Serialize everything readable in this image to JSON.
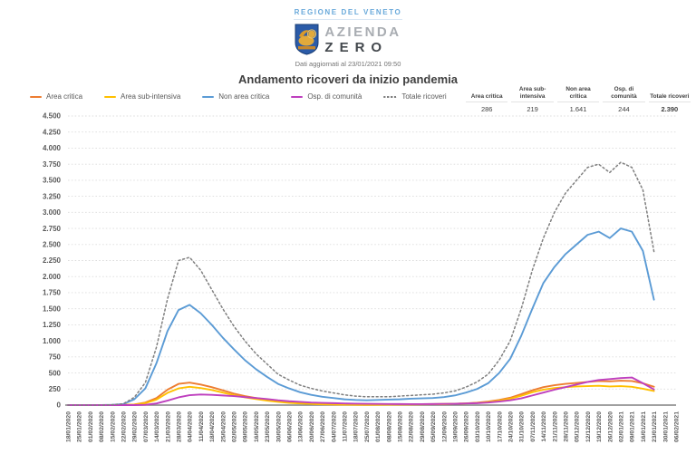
{
  "header": {
    "region_label": "REGIONE DEL VENETO",
    "logo_line1": "AZIENDA",
    "logo_line2": "ZERO",
    "updated_text": "Dati aggiornati al 23/01/2021 09:50",
    "title": "Andamento ricoveri da inizio pandemia"
  },
  "summary_table": {
    "columns": [
      {
        "header": "Area critica",
        "value": "286",
        "emphasis": false
      },
      {
        "header": "Area sub-intensiva",
        "value": "219",
        "emphasis": false
      },
      {
        "header": "Non area critica",
        "value": "1.641",
        "emphasis": false
      },
      {
        "header": "Osp. di comunità",
        "value": "244",
        "emphasis": false
      },
      {
        "header": "Totale ricoveri",
        "value": "2.390",
        "emphasis": true
      }
    ]
  },
  "chart_data": {
    "type": "line",
    "title": "Andamento ricoveri da inizio pandemia",
    "xlabel": "",
    "ylabel": "",
    "ylim": [
      0,
      4500
    ],
    "y_tick_step": 250,
    "grid": true,
    "legend_position": "top-left",
    "x_labels": [
      "18/01/2020",
      "25/01/2020",
      "01/02/2020",
      "08/02/2020",
      "15/02/2020",
      "22/02/2020",
      "29/02/2020",
      "07/03/2020",
      "14/03/2020",
      "21/03/2020",
      "28/03/2020",
      "04/04/2020",
      "11/04/2020",
      "18/04/2020",
      "25/04/2020",
      "02/05/2020",
      "09/05/2020",
      "16/05/2020",
      "23/05/2020",
      "30/05/2020",
      "06/06/2020",
      "13/06/2020",
      "20/06/2020",
      "27/06/2020",
      "04/07/2020",
      "11/07/2020",
      "18/07/2020",
      "25/07/2020",
      "01/08/2020",
      "08/08/2020",
      "15/08/2020",
      "22/08/2020",
      "29/08/2020",
      "05/09/2020",
      "12/09/2020",
      "19/09/2020",
      "26/09/2020",
      "03/10/2020",
      "10/10/2020",
      "17/10/2020",
      "24/10/2020",
      "31/10/2020",
      "07/11/2020",
      "14/11/2020",
      "21/11/2020",
      "28/11/2020",
      "05/12/2020",
      "12/12/2020",
      "19/12/2020",
      "26/12/2020",
      "02/01/2021",
      "09/01/2021",
      "16/01/2021",
      "23/01/2021",
      "30/01/2021",
      "06/02/2021"
    ],
    "series": [
      {
        "name": "Area critica",
        "color": "#ED7D31",
        "style": "solid",
        "values": [
          0,
          0,
          0,
          0,
          0,
          5,
          10,
          40,
          110,
          240,
          330,
          350,
          320,
          280,
          230,
          180,
          140,
          110,
          85,
          60,
          45,
          30,
          20,
          15,
          10,
          8,
          6,
          5,
          6,
          8,
          10,
          12,
          14,
          16,
          18,
          22,
          28,
          38,
          55,
          80,
          115,
          170,
          230,
          280,
          310,
          330,
          345,
          360,
          375,
          370,
          380,
          375,
          340,
          286,
          null,
          null
        ]
      },
      {
        "name": "Area sub-intensiva",
        "color": "#FFC000",
        "style": "solid",
        "values": [
          0,
          0,
          0,
          0,
          0,
          4,
          8,
          30,
          85,
          190,
          260,
          285,
          265,
          235,
          195,
          155,
          120,
          95,
          70,
          50,
          35,
          25,
          18,
          12,
          9,
          7,
          5,
          5,
          5,
          6,
          8,
          10,
          12,
          14,
          16,
          20,
          25,
          33,
          48,
          70,
          100,
          145,
          200,
          240,
          265,
          280,
          290,
          295,
          300,
          290,
          295,
          285,
          255,
          219,
          null,
          null
        ]
      },
      {
        "name": "Non area critica",
        "color": "#5B9BD5",
        "style": "solid",
        "values": [
          0,
          0,
          0,
          0,
          5,
          15,
          90,
          260,
          650,
          1150,
          1480,
          1560,
          1430,
          1250,
          1050,
          870,
          700,
          560,
          440,
          330,
          260,
          200,
          160,
          130,
          110,
          90,
          80,
          75,
          80,
          85,
          90,
          100,
          105,
          110,
          125,
          150,
          195,
          250,
          340,
          500,
          720,
          1080,
          1500,
          1900,
          2150,
          2350,
          2500,
          2650,
          2700,
          2600,
          2750,
          2700,
          2400,
          1641,
          null,
          null
        ]
      },
      {
        "name": "Osp. di comunità",
        "color": "#BE3FBE",
        "style": "solid",
        "values": [
          0,
          0,
          0,
          0,
          0,
          0,
          0,
          5,
          25,
          70,
          120,
          155,
          165,
          160,
          150,
          140,
          125,
          110,
          95,
          75,
          60,
          50,
          40,
          35,
          30,
          25,
          22,
          20,
          18,
          17,
          16,
          15,
          15,
          16,
          18,
          20,
          25,
          30,
          40,
          55,
          75,
          105,
          150,
          195,
          240,
          280,
          320,
          360,
          390,
          405,
          420,
          430,
          340,
          244,
          null,
          null
        ]
      },
      {
        "name": "Totale ricoveri",
        "color": "#7F7F7F",
        "style": "dotted",
        "values": [
          0,
          0,
          0,
          0,
          5,
          20,
          120,
          350,
          900,
          1650,
          2250,
          2300,
          2100,
          1800,
          1500,
          1230,
          1000,
          800,
          640,
          480,
          390,
          310,
          260,
          220,
          190,
          160,
          140,
          130,
          130,
          130,
          140,
          150,
          160,
          170,
          190,
          220,
          280,
          360,
          480,
          700,
          1000,
          1500,
          2100,
          2600,
          3000,
          3300,
          3500,
          3700,
          3750,
          3620,
          3780,
          3700,
          3350,
          2390,
          null,
          null
        ]
      }
    ]
  },
  "colors": {
    "region_label": "#69a9da",
    "grid_line": "#dcdcdc",
    "axis_line": "#808080",
    "tick_text": "#595959"
  }
}
